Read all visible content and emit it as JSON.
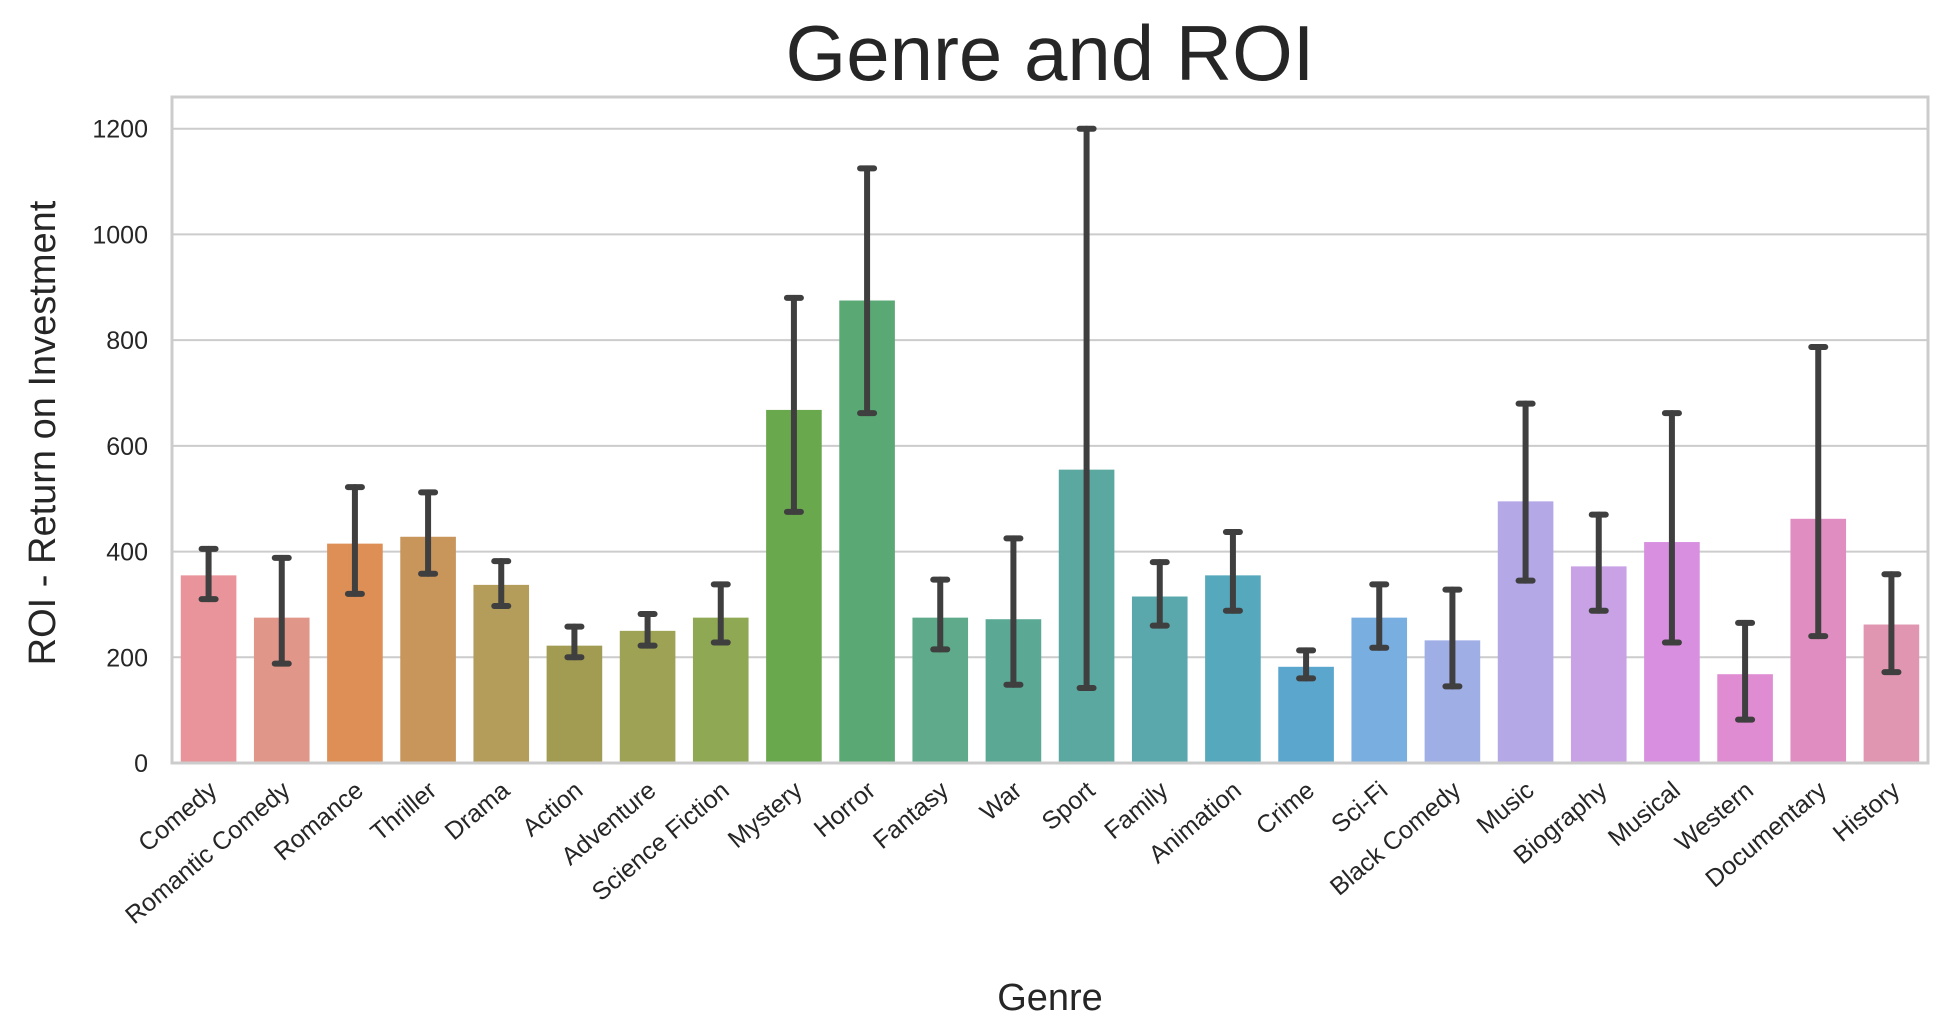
{
  "chart_data": {
    "type": "bar",
    "title": "Genre and ROI",
    "xlabel": "Genre",
    "ylabel": "ROI - Return on Investment",
    "ylim": [
      0,
      1260
    ],
    "yticks": [
      0,
      200,
      400,
      600,
      800,
      1000,
      1200
    ],
    "grid": true,
    "categories": [
      "Comedy",
      "Romantic Comedy",
      "Romance",
      "Thriller",
      "Drama",
      "Action",
      "Adventure",
      "Science Fiction",
      "Mystery",
      "Horror",
      "Fantasy",
      "War",
      "Sport",
      "Family",
      "Animation",
      "Crime",
      "Sci-Fi",
      "Black Comedy",
      "Music",
      "Biography",
      "Musical",
      "Western",
      "Documentary",
      "History"
    ],
    "values": [
      355,
      275,
      415,
      428,
      337,
      222,
      250,
      275,
      668,
      875,
      275,
      272,
      555,
      315,
      355,
      182,
      275,
      232,
      495,
      372,
      418,
      168,
      462,
      262
    ],
    "error_low": [
      310,
      188,
      320,
      358,
      297,
      200,
      222,
      228,
      475,
      662,
      215,
      148,
      142,
      260,
      288,
      160,
      218,
      145,
      345,
      288,
      228,
      82,
      240,
      172
    ],
    "error_high": [
      405,
      388,
      522,
      512,
      382,
      258,
      282,
      338,
      880,
      1125,
      347,
      425,
      1200,
      380,
      437,
      213,
      338,
      328,
      680,
      470,
      662,
      265,
      787,
      357
    ],
    "colors": [
      "#e8949a",
      "#e0978a",
      "#dd8f56",
      "#c8955b",
      "#b49c5a",
      "#a29c53",
      "#9ea254",
      "#8fa854",
      "#6aa84e",
      "#5aa874",
      "#5eaa8a",
      "#5ba895",
      "#5ba8a0",
      "#5aa8ab",
      "#56a8bc",
      "#5aa6cc",
      "#78aee0",
      "#a0aee6",
      "#b4a8e6",
      "#c8a2e4",
      "#d88fe0",
      "#e08cd2",
      "#e08ec2",
      "#e096b0"
    ]
  }
}
